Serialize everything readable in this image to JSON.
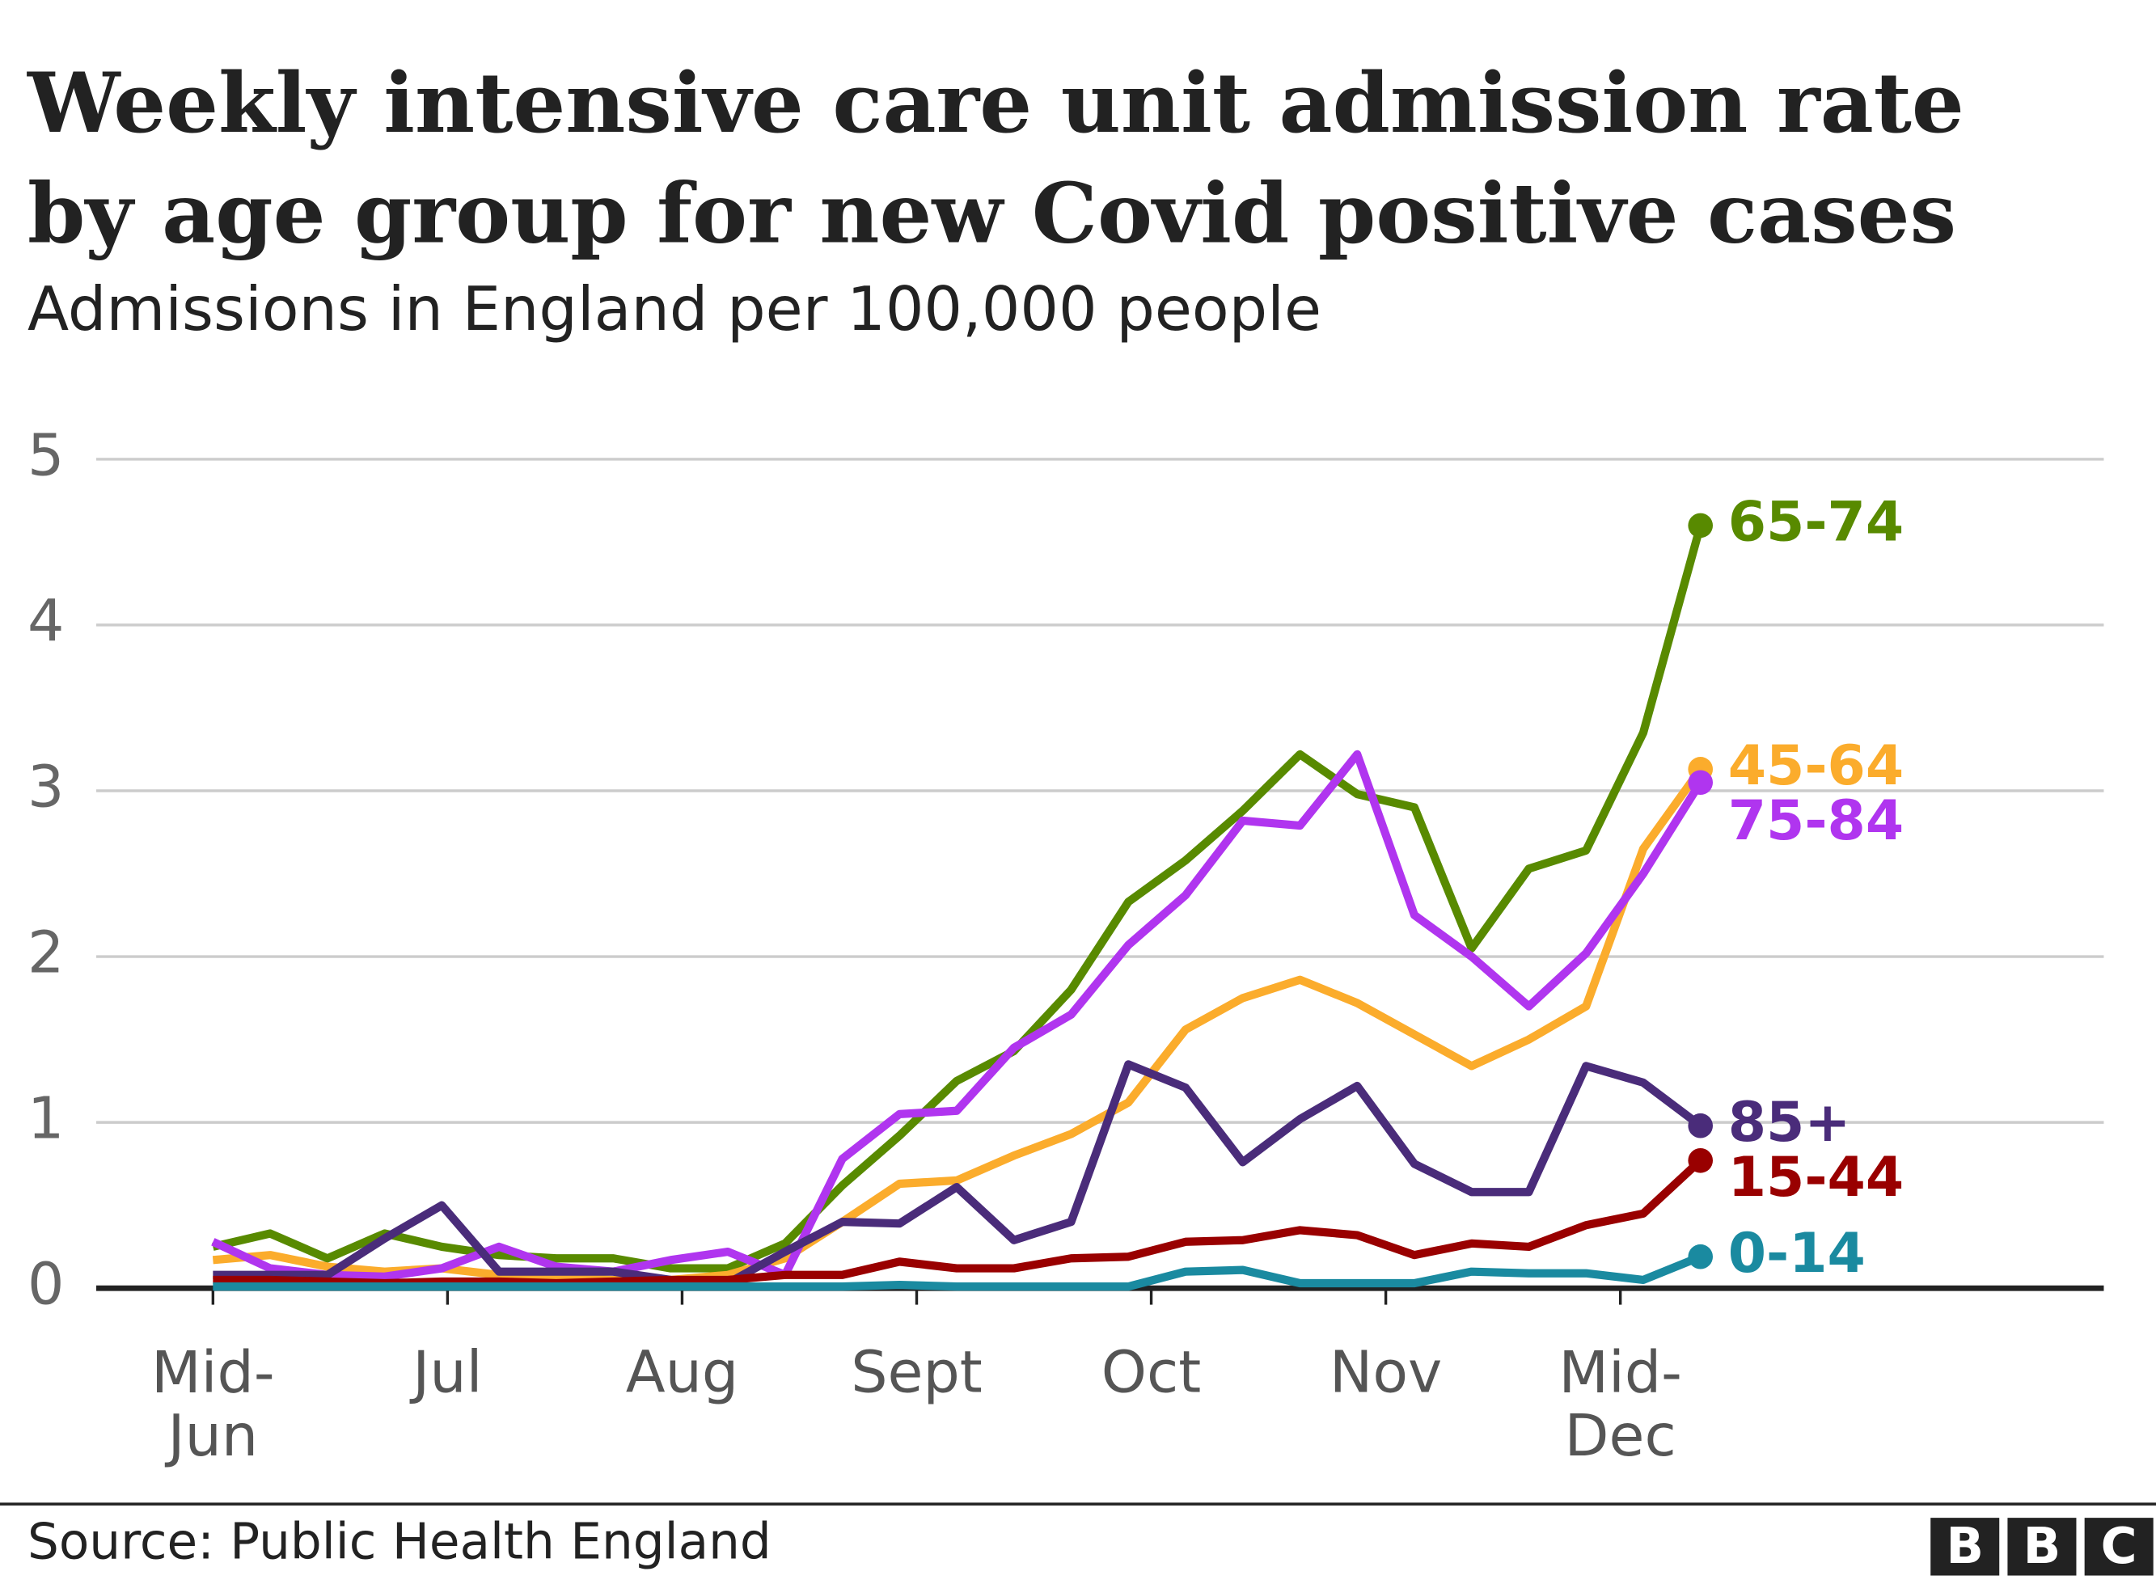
{
  "chart_data": {
    "type": "line",
    "title": "Weekly intensive care unit admission rate by age group for new Covid positive cases",
    "subtitle": "Admissions in England per 100,000 people",
    "source": "Source: Public Health England",
    "logo": "BBC",
    "x": [
      0,
      1,
      2,
      3,
      4,
      5,
      6,
      7,
      8,
      9,
      10,
      11,
      12,
      13,
      14,
      15,
      16,
      17,
      18,
      19,
      20,
      21,
      22,
      23,
      24,
      25,
      26
    ],
    "xlim": [
      -2.04,
      33.05
    ],
    "xticks": [
      {
        "value": 0,
        "label": "Mid-\nJun"
      },
      {
        "value": 4.1,
        "label": "Jul"
      },
      {
        "value": 8.2,
        "label": "Aug"
      },
      {
        "value": 12.3,
        "label": "Sept"
      },
      {
        "value": 16.4,
        "label": "Oct"
      },
      {
        "value": 20.5,
        "label": "Nov"
      },
      {
        "value": 24.6,
        "label": "Mid-\nDec"
      }
    ],
    "ylim": [
      0,
      5
    ],
    "yticks": [
      0,
      1,
      2,
      3,
      4,
      5
    ],
    "grid": true,
    "series": [
      {
        "name": "65-74",
        "color": "#588a00",
        "values": [
          0.25,
          0.33,
          0.18,
          0.33,
          0.25,
          0.2,
          0.18,
          0.18,
          0.12,
          0.12,
          0.27,
          0.62,
          0.92,
          1.25,
          1.43,
          1.8,
          2.33,
          2.58,
          2.88,
          3.22,
          2.98,
          2.9,
          2.05,
          2.53,
          2.64,
          3.35,
          4.6
        ]
      },
      {
        "name": "45-64",
        "color": "#fbac2c",
        "values": [
          0.17,
          0.2,
          0.13,
          0.1,
          0.12,
          0.08,
          0.06,
          0.05,
          0.05,
          0.08,
          0.18,
          0.4,
          0.63,
          0.65,
          0.8,
          0.93,
          1.12,
          1.56,
          1.75,
          1.86,
          1.72,
          1.53,
          1.34,
          1.5,
          1.7,
          2.65,
          3.13
        ]
      },
      {
        "name": "75-84",
        "color": "#b035ef",
        "values": [
          0.28,
          0.12,
          0.08,
          0.07,
          0.12,
          0.25,
          0.13,
          0.1,
          0.17,
          0.22,
          0.08,
          0.78,
          1.05,
          1.07,
          1.45,
          1.65,
          2.07,
          2.37,
          2.82,
          2.79,
          3.22,
          2.25,
          2.0,
          1.7,
          2.02,
          2.5,
          3.05
        ]
      },
      {
        "name": "85+",
        "color": "#4a2c7a",
        "values": [
          0.08,
          0.08,
          0.08,
          0.3,
          0.5,
          0.1,
          0.1,
          0.1,
          0.05,
          0.03,
          0.22,
          0.4,
          0.39,
          0.61,
          0.29,
          0.4,
          1.35,
          1.21,
          0.76,
          1.02,
          1.22,
          0.75,
          0.58,
          0.58,
          1.34,
          1.24,
          0.98
        ]
      },
      {
        "name": "15-44",
        "color": "#990000",
        "values": [
          0.05,
          0.05,
          0.04,
          0.03,
          0.04,
          0.04,
          0.03,
          0.04,
          0.05,
          0.05,
          0.08,
          0.08,
          0.16,
          0.12,
          0.12,
          0.18,
          0.19,
          0.28,
          0.29,
          0.35,
          0.32,
          0.2,
          0.27,
          0.25,
          0.38,
          0.45,
          0.77
        ]
      },
      {
        "name": "0-14",
        "color": "#1a8aa0",
        "values": [
          0.01,
          0.01,
          0.01,
          0.01,
          0.01,
          0.01,
          0.01,
          0.01,
          0.01,
          0.01,
          0.01,
          0.01,
          0.02,
          0.01,
          0.01,
          0.01,
          0.01,
          0.1,
          0.11,
          0.03,
          0.03,
          0.03,
          0.1,
          0.09,
          0.09,
          0.05,
          0.19
        ]
      }
    ]
  }
}
